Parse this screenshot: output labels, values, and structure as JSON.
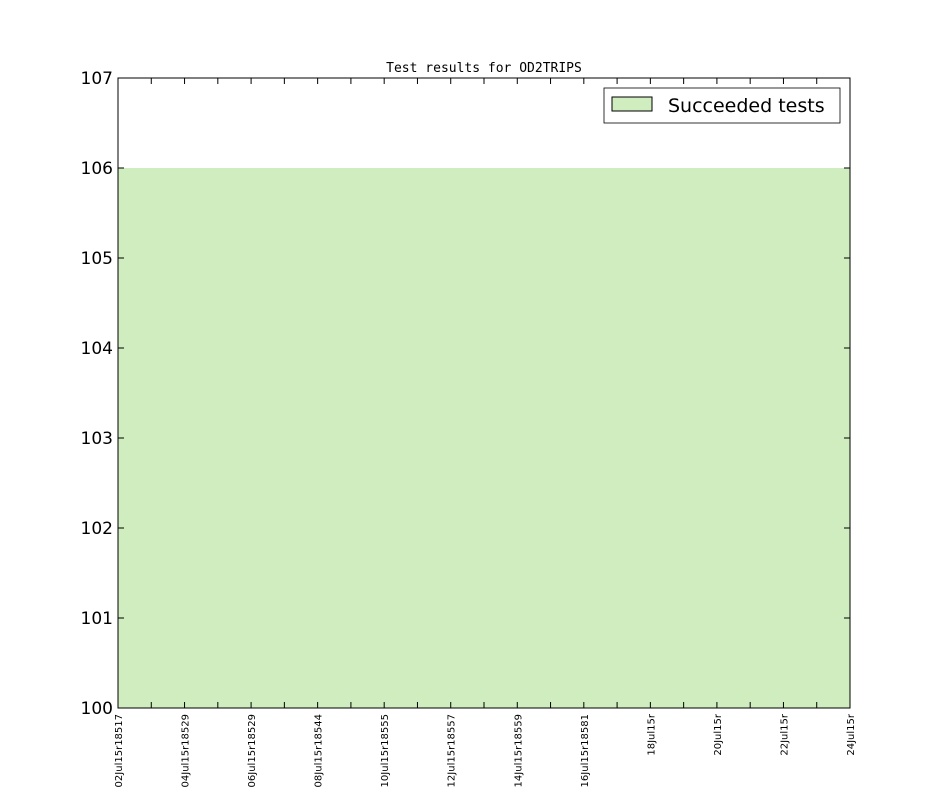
{
  "chart_data": {
    "type": "area",
    "title": "Test results for OD2TRIPS",
    "xlabel": "",
    "ylabel": "",
    "ylim": [
      100,
      107
    ],
    "yticks": [
      "100",
      "101",
      "102",
      "103",
      "104",
      "105",
      "106",
      "107"
    ],
    "xtick_labels": [
      "02Jul15r18517",
      "04Jul15r18529",
      "06Jul15r18529",
      "08Jul15r18544",
      "10Jul15r18555",
      "12Jul15r18557",
      "14Jul15r18559",
      "16Jul15r18581",
      "18Jul15r",
      "20Jul15r",
      "22Jul15r",
      "24Jul15r"
    ],
    "x_days": [
      2,
      3,
      4,
      5,
      6,
      7,
      8,
      9,
      10,
      11,
      12,
      13,
      14,
      15,
      16,
      17,
      18,
      19,
      20,
      21,
      22,
      23,
      24
    ],
    "series": [
      {
        "name": "Succeeded tests",
        "color": "#cfedbe",
        "values": [
          106,
          106,
          106,
          106,
          106,
          106,
          106,
          106,
          106,
          106,
          106,
          106,
          106,
          106,
          106,
          106,
          106,
          106,
          106,
          106,
          106,
          106,
          106
        ]
      }
    ],
    "legend": "top-right",
    "grid": false
  }
}
